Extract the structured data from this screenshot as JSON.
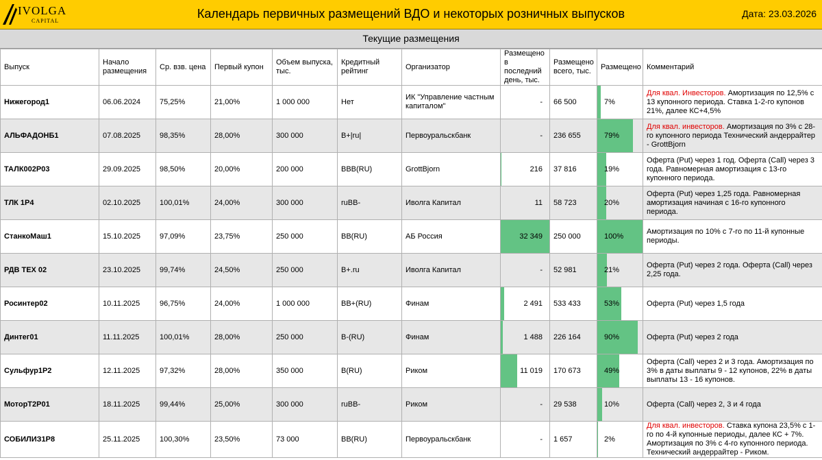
{
  "header": {
    "logo_name": "IVOLGA",
    "logo_sub": "CAPITAL",
    "title": "Календарь первичных размещений ВДО и некоторых розничных выпусков",
    "date_label": "Дата:",
    "date_value": "23.03.2026"
  },
  "section_title": "Текущие размещения",
  "colors": {
    "header_bg": "#ffcc00",
    "bar": "#63c384",
    "highlight": "#e00000",
    "shaded_row": "#e7e7e7"
  },
  "columns": {
    "issue": "Выпуск",
    "start": "Начало размещения",
    "price": "Ср. взв. цена",
    "coupon": "Первый купон",
    "volume": "Объем выпуска, тыс.",
    "rating": "Кредитный рейтинг",
    "organizer": "Организатор",
    "last_day": "Размещено в последний день, тыс.",
    "total": "Размещено всего, тыс.",
    "placed": "Размещено",
    "comment": "Комментарий"
  },
  "rows": [
    {
      "issue": "Нижегород1",
      "start": "06.06.2024",
      "price": "75,25%",
      "coupon": "21,00%",
      "volume": "1 000 000",
      "rating": "Нет",
      "organizer": "ИК \"Управление частным капиталом\"",
      "last_day": "-",
      "last_day_frac": 0,
      "total": "66 500",
      "placed": "7%",
      "placed_frac": 0.07,
      "comment_red": "Для квал. Инвесторов.",
      "comment": " Амортизация по 12,5% с 13 купонного периода. Ставка 1-2-го купонов 21%, далее КС+4,5%"
    },
    {
      "issue": "АЛЬФАДОНБ1",
      "start": "07.08.2025",
      "price": "98,35%",
      "coupon": "28,00%",
      "volume": "300 000",
      "rating": "B+|ru|",
      "organizer": "Первоуральскбанк",
      "last_day": "-",
      "last_day_frac": 0,
      "total": "236 655",
      "placed": "79%",
      "placed_frac": 0.79,
      "comment_red": "Для квал. инвесторов.",
      "comment": " Амортизация по 3% с 28-го купонного периода Технический андеррайтер - GrottBjorn"
    },
    {
      "issue": "ТАЛК002Р03",
      "start": "29.09.2025",
      "price": "98,50%",
      "coupon": "20,00%",
      "volume": "200 000",
      "rating": "BBB(RU)",
      "organizer": "GrottBjorn",
      "last_day": "216",
      "last_day_frac": 0.007,
      "total": "37 816",
      "placed": "19%",
      "placed_frac": 0.19,
      "comment_red": "",
      "comment": "Оферта (Put) через 1 год. Оферта (Call) через 3 года. Равномерная амортизация с 13-го купонного периода."
    },
    {
      "issue": "ТЛК 1Р4",
      "start": "02.10.2025",
      "price": "100,01%",
      "coupon": "24,00%",
      "volume": "300 000",
      "rating": "ruBB-",
      "organizer": "Иволга Капитал",
      "last_day": "11",
      "last_day_frac": 0.0003,
      "total": "58 723",
      "placed": "20%",
      "placed_frac": 0.2,
      "comment_red": "",
      "comment": "Оферта (Put) через 1,25 года. Равномерная амортизация начиная с 16-го купонного периода."
    },
    {
      "issue": "СтанкоМаш1",
      "start": "15.10.2025",
      "price": "97,09%",
      "coupon": "23,75%",
      "volume": "250 000",
      "rating": "BB(RU)",
      "organizer": "АБ Россия",
      "last_day": "32 349",
      "last_day_frac": 1,
      "total": "250 000",
      "placed": "100%",
      "placed_frac": 1.0,
      "comment_red": "",
      "comment": "Амортизация по 10% с 7-го по 11-й купонные периоды."
    },
    {
      "issue": "РДВ ТЕХ 02",
      "start": "23.10.2025",
      "price": "99,74%",
      "coupon": "24,50%",
      "volume": "250 000",
      "rating": "B+.ru",
      "organizer": "Иволга Капитал",
      "last_day": "-",
      "last_day_frac": 0,
      "total": "52 981",
      "placed": "21%",
      "placed_frac": 0.21,
      "comment_red": "",
      "comment": "Оферта (Put) через 2 года. Оферта (Call) через 2,25 года."
    },
    {
      "issue": "Росинтер02",
      "start": "10.11.2025",
      "price": "96,75%",
      "coupon": "24,00%",
      "volume": "1 000 000",
      "rating": "BB+(RU)",
      "organizer": "Финам",
      "last_day": "2 491",
      "last_day_frac": 0.077,
      "total": "533 433",
      "placed": "53%",
      "placed_frac": 0.53,
      "comment_red": "",
      "comment": "Оферта (Put) через 1,5 года"
    },
    {
      "issue": "Динтег01",
      "start": "11.11.2025",
      "price": "100,01%",
      "coupon": "28,00%",
      "volume": "250 000",
      "rating": "B-(RU)",
      "organizer": "Финам",
      "last_day": "1 488",
      "last_day_frac": 0.046,
      "total": "226 164",
      "placed": "90%",
      "placed_frac": 0.9,
      "comment_red": "",
      "comment": "Оферта (Put) через 2 года"
    },
    {
      "issue": "Сульфур1Р2",
      "start": "12.11.2025",
      "price": "97,32%",
      "coupon": "28,00%",
      "volume": "350 000",
      "rating": "B(RU)",
      "organizer": "Риком",
      "last_day": "11 019",
      "last_day_frac": 0.34,
      "total": "170 673",
      "placed": "49%",
      "placed_frac": 0.49,
      "comment_red": "",
      "comment": "Оферта (Call) через 2 и 3 года. Амортизация по 3% в даты выплаты 9 - 12 купонов, 22% в даты выплаты 13 - 16 купонов."
    },
    {
      "issue": "МоторТ2Р01",
      "start": "18.11.2025",
      "price": "99,44%",
      "coupon": "25,00%",
      "volume": "300 000",
      "rating": "ruBB-",
      "organizer": "Риком",
      "last_day": "-",
      "last_day_frac": 0,
      "total": "29 538",
      "placed": "10%",
      "placed_frac": 0.1,
      "comment_red": "",
      "comment": "Оферта (Call) через 2, 3 и 4 года"
    },
    {
      "issue": "СОБИЛИЗ1Р8",
      "start": "25.11.2025",
      "price": "100,30%",
      "coupon": "23,50%",
      "volume": "73 000",
      "rating": "BB(RU)",
      "organizer": "Первоуральскбанк",
      "last_day": "-",
      "last_day_frac": 0,
      "total": "1 657",
      "placed": "2%",
      "placed_frac": 0.02,
      "comment_red": "Для квал. инвесторов.",
      "comment": " Ставка купона 23,5% с 1-го по 4-й купонные периоды, далее КС + 7%. Амортизация по 3% с 4-го купонного периода. Технический андеррайтер - Риком."
    }
  ]
}
